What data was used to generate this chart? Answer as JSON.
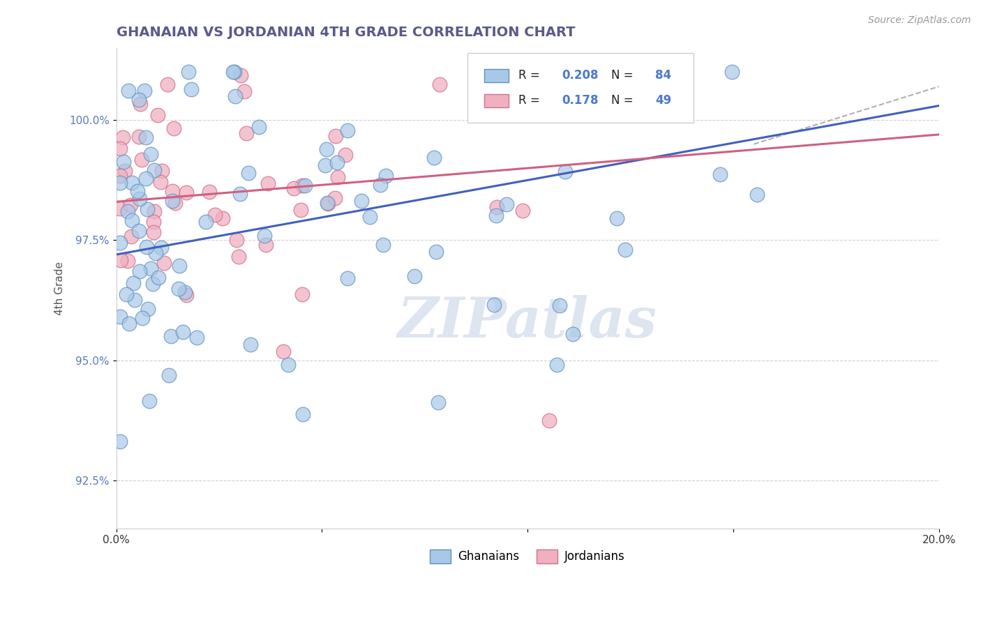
{
  "title": "GHANAIAN VS JORDANIAN 4TH GRADE CORRELATION CHART",
  "title_color": "#5a5a8a",
  "source_text": "Source: ZipAtlas.com",
  "ylabel": "4th Grade",
  "xlim": [
    0.0,
    0.2
  ],
  "ylim": [
    91.5,
    101.5
  ],
  "yticks": [
    92.5,
    95.0,
    97.5,
    100.0
  ],
  "ytick_labels": [
    "92.5%",
    "95.0%",
    "97.5%",
    "100.0%"
  ],
  "xticks": [
    0.0,
    0.05,
    0.1,
    0.15,
    0.2
  ],
  "xtick_labels": [
    "0.0%",
    "",
    "",
    "",
    "20.0%"
  ],
  "ghanaian_color": "#a8c8e8",
  "ghanaian_edge": "#6090c0",
  "jordanian_color": "#f0b0c0",
  "jordanian_edge": "#d07090",
  "ghanaian_line_color": "#4060c0",
  "jordanian_line_color": "#d06080",
  "trend_dash_color": "#b0b0b0",
  "R_ghana": 0.208,
  "N_ghana": 84,
  "R_jordan": 0.178,
  "N_jordan": 49,
  "watermark_text": "ZIPatlas",
  "watermark_color": "#dde5f0",
  "legend_label_ghana": "Ghanaians",
  "legend_label_jordan": "Jordanians",
  "gh_line_x": [
    0.0,
    0.2
  ],
  "gh_line_y": [
    97.2,
    100.3
  ],
  "jo_line_x": [
    0.0,
    0.2
  ],
  "jo_line_y": [
    98.3,
    99.7
  ],
  "dash_line_x": [
    0.155,
    0.2
  ],
  "dash_line_y": [
    99.5,
    100.7
  ]
}
